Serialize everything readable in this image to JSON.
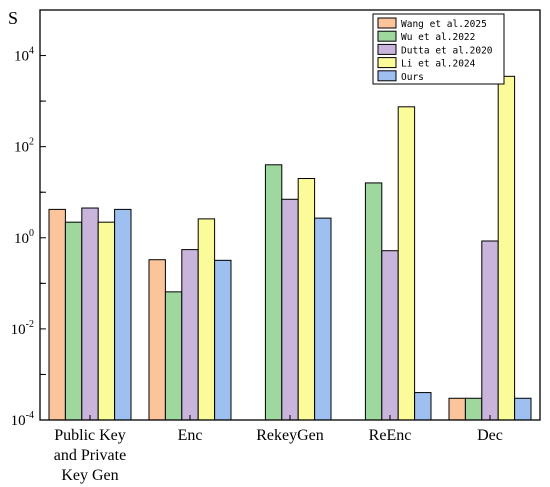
{
  "chart_data": {
    "type": "bar",
    "title": "",
    "xlabel": "",
    "ylabel": "S",
    "yscale": "log",
    "ylim": [
      0.0001,
      100000
    ],
    "yticks": [
      {
        "value": 0.0001,
        "base": "10",
        "exp": "-4"
      },
      {
        "value": 0.01,
        "base": "10",
        "exp": "-2"
      },
      {
        "value": 1,
        "base": "10",
        "exp": "0"
      },
      {
        "value": 100,
        "base": "10",
        "exp": "2"
      },
      {
        "value": 10000,
        "base": "10",
        "exp": "4"
      }
    ],
    "grid": false,
    "legend_position": "top-right",
    "categories": [
      [
        "Public Key",
        "and Private",
        "Key Gen"
      ],
      [
        "Enc"
      ],
      [
        "RekeyGen"
      ],
      [
        "ReEnc"
      ],
      [
        "Dec"
      ]
    ],
    "series": [
      {
        "name": "Wang et al.2025",
        "color": "#fbc49a",
        "values": [
          4.2,
          0.33,
          null,
          null,
          0.0003
        ]
      },
      {
        "name": "Wu et al.2022",
        "color": "#9fd89f",
        "values": [
          2.2,
          0.065,
          40,
          16,
          0.0003
        ]
      },
      {
        "name": "Dutta et al.2020",
        "color": "#c9b5db",
        "values": [
          4.5,
          0.55,
          7,
          0.52,
          0.85
        ]
      },
      {
        "name": "Li et al.2024",
        "color": "#fbfb9a",
        "values": [
          2.2,
          2.6,
          20,
          750,
          3500
        ]
      },
      {
        "name": "Ours",
        "color": "#9ec0f0",
        "values": [
          4.2,
          0.32,
          2.7,
          0.0004,
          0.0003
        ]
      }
    ]
  }
}
